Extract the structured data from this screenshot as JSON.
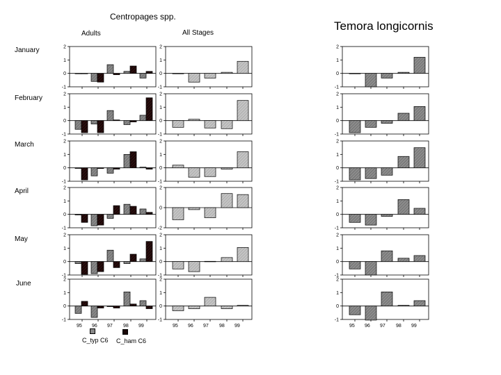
{
  "titles": {
    "centropages": "Centropages spp.",
    "temora": "Temora longicornis",
    "adults": "Adults",
    "all_stages": "All Stages"
  },
  "months": [
    "January",
    "February",
    "March",
    "April",
    "May",
    "June"
  ],
  "legend": {
    "typ": "C_typ C6",
    "ham": "C_ham C6"
  },
  "colors": {
    "typ_fill": "#888888",
    "ham_fill": "#1a0808",
    "allstages_fill": "#c4c4c4",
    "temora_fill": "#8c8c8c"
  },
  "chart_data": [
    {
      "type": "bar",
      "panel": "Centropages Adults",
      "categories": [
        "95",
        "96",
        "97",
        "98",
        "99"
      ],
      "rows": [
        {
          "month": "January",
          "ylim": [
            -1,
            2
          ],
          "ticks": [
            "2",
            "1",
            "0",
            "-1"
          ],
          "series": [
            {
              "name": "C_typ C6",
              "values": [
                0,
                -0.6,
                0.65,
                0.15,
                -0.35
              ]
            },
            {
              "name": "C_ham C6",
              "values": [
                0,
                -0.65,
                -0.1,
                0.55,
                0.15
              ]
            }
          ]
        },
        {
          "month": "February",
          "ylim": [
            -1,
            2
          ],
          "ticks": [
            "2",
            "1",
            "0",
            "-1"
          ],
          "series": [
            {
              "name": "C_typ C6",
              "values": [
                -0.65,
                -0.25,
                0.75,
                -0.3,
                0.4
              ]
            },
            {
              "name": "C_ham C6",
              "values": [
                -0.9,
                -0.9,
                0.05,
                -0.1,
                1.7
              ]
            }
          ]
        },
        {
          "month": "March",
          "ylim": [
            -1,
            2
          ],
          "ticks": [
            "2",
            "1",
            "0",
            "-1"
          ],
          "series": [
            {
              "name": "C_typ C6",
              "values": [
                -0.05,
                -0.6,
                -0.4,
                1.0,
                0.05
              ]
            },
            {
              "name": "C_ham C6",
              "values": [
                -0.9,
                -0.05,
                -0.1,
                1.2,
                -0.1
              ]
            }
          ]
        },
        {
          "month": "April",
          "ylim": [
            -1,
            2
          ],
          "ticks": [
            "2",
            "1",
            "0",
            "-1"
          ],
          "series": [
            {
              "name": "C_typ C6",
              "values": [
                -0.05,
                -0.85,
                -0.3,
                0.75,
                0.4
              ]
            },
            {
              "name": "C_ham C6",
              "values": [
                -0.6,
                -0.8,
                0.65,
                0.6,
                0.15
              ]
            }
          ]
        },
        {
          "month": "May",
          "ylim": [
            -1,
            2
          ],
          "ticks": [
            "2",
            "1",
            "0",
            "-1"
          ],
          "series": [
            {
              "name": "C_typ C6",
              "values": [
                -0.15,
                -0.9,
                0.85,
                -0.15,
                0.2
              ]
            },
            {
              "name": "C_ham C6",
              "values": [
                -0.95,
                -0.75,
                -0.45,
                0.55,
                1.5
              ]
            }
          ]
        },
        {
          "month": "June",
          "ylim": [
            -1,
            2
          ],
          "ticks": [
            "2",
            "1",
            "0",
            "-1"
          ],
          "series": [
            {
              "name": "C_typ C6",
              "values": [
                -0.55,
                -0.85,
                -0.05,
                1.05,
                0.4
              ]
            },
            {
              "name": "C_ham C6",
              "values": [
                0.35,
                -0.15,
                -0.15,
                0.15,
                -0.2
              ]
            }
          ]
        }
      ]
    },
    {
      "type": "bar",
      "panel": "Centropages All Stages",
      "categories": [
        "95",
        "96",
        "97",
        "98",
        "99"
      ],
      "rows": [
        {
          "month": "January",
          "ylim": [
            -1,
            2
          ],
          "ticks": [
            "2",
            "1",
            "0",
            "-1"
          ],
          "values": [
            0,
            -0.65,
            -0.35,
            0.08,
            0.9
          ]
        },
        {
          "month": "February",
          "ylim": [
            -1,
            2
          ],
          "ticks": [
            "2",
            "1",
            "0",
            "-1"
          ],
          "values": [
            -0.5,
            0.1,
            -0.55,
            -0.6,
            1.5
          ]
        },
        {
          "month": "March",
          "ylim": [
            -1,
            2
          ],
          "ticks": [
            "2",
            "1",
            "0",
            "-1"
          ],
          "values": [
            0.2,
            -0.7,
            -0.65,
            -0.1,
            1.2
          ]
        },
        {
          "month": "April",
          "ylim": [
            -2,
            2
          ],
          "ticks": [
            "2",
            "0",
            "-2"
          ],
          "values": [
            -1.2,
            -0.2,
            -1.0,
            1.4,
            1.3
          ]
        },
        {
          "month": "May",
          "ylim": [
            -1,
            2
          ],
          "ticks": [
            "2",
            "1",
            "0",
            "-1"
          ],
          "values": [
            -0.55,
            -0.75,
            0.02,
            0.3,
            1.05
          ]
        },
        {
          "month": "June",
          "ylim": [
            -1,
            2
          ],
          "ticks": [
            "2",
            "1",
            "0",
            "-1"
          ],
          "values": [
            -0.35,
            -0.2,
            0.65,
            -0.2,
            0.05
          ]
        }
      ]
    },
    {
      "type": "bar",
      "panel": "Temora longicornis",
      "categories": [
        "95",
        "96",
        "97",
        "98",
        "99"
      ],
      "rows": [
        {
          "month": "January",
          "ylim": [
            -1,
            2
          ],
          "ticks": [
            "2",
            "1",
            "0",
            "-1"
          ],
          "values": [
            0,
            -1.0,
            -0.35,
            0.08,
            1.2
          ]
        },
        {
          "month": "February",
          "ylim": [
            -1,
            2
          ],
          "ticks": [
            "2",
            "1",
            "0",
            "-1"
          ],
          "values": [
            -0.9,
            -0.5,
            -0.2,
            0.55,
            1.05
          ]
        },
        {
          "month": "March",
          "ylim": [
            -1,
            2
          ],
          "ticks": [
            "2",
            "1",
            "0",
            "-1"
          ],
          "values": [
            -0.9,
            -0.8,
            -0.55,
            0.85,
            1.5
          ]
        },
        {
          "month": "April",
          "ylim": [
            -1,
            2
          ],
          "ticks": [
            "2",
            "1",
            "0",
            "-1"
          ],
          "values": [
            -0.6,
            -0.8,
            -0.15,
            1.1,
            0.45
          ]
        },
        {
          "month": "May",
          "ylim": [
            -1,
            2
          ],
          "ticks": [
            "2",
            "1",
            "0",
            "-1"
          ],
          "values": [
            -0.55,
            -1.0,
            0.8,
            0.25,
            0.45
          ]
        },
        {
          "month": "June",
          "ylim": [
            -1,
            2
          ],
          "ticks": [
            "2",
            "1",
            "0",
            "-1"
          ],
          "values": [
            -0.65,
            -1.05,
            1.05,
            0.05,
            0.4
          ]
        }
      ]
    }
  ]
}
